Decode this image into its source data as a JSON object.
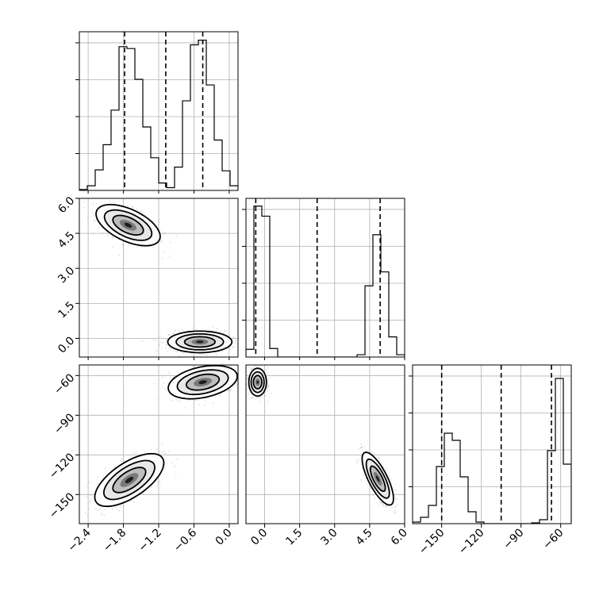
{
  "chart_data": {
    "type": "corner",
    "title": "",
    "grid": true,
    "variables": [
      {
        "ticks": [
          -2.4,
          -1.8,
          -1.2,
          -0.6,
          0.0
        ],
        "tick_labels": [
          "−2.4",
          "−1.8",
          "−1.2",
          "−0.6",
          "0.0"
        ],
        "range": [
          -2.55,
          0.15
        ]
      },
      {
        "ticks": [
          0.0,
          1.5,
          3.0,
          4.5,
          6.0
        ],
        "tick_labels": [
          "0.0",
          "1.5",
          "3.0",
          "4.5",
          "6.0"
        ],
        "range": [
          -0.8,
          6.0
        ]
      },
      {
        "ticks": [
          -150,
          -120,
          -90,
          -60
        ],
        "tick_labels": [
          "−150",
          "−120",
          "−90",
          "−60"
        ],
        "range": [
          -172,
          -52
        ]
      }
    ],
    "histograms": [
      {
        "variable": 0,
        "bin_edges": [
          -2.55,
          -2.415,
          -2.28,
          -2.145,
          -2.01,
          -1.875,
          -1.74,
          -1.605,
          -1.47,
          -1.335,
          -1.2,
          -1.065,
          -0.93,
          -0.795,
          -0.66,
          -0.525,
          -0.39,
          -0.255,
          -0.12,
          0.015,
          0.15
        ],
        "counts": [
          1,
          5,
          22,
          49,
          86,
          154,
          152,
          119,
          68,
          35,
          8,
          3,
          25,
          96,
          156,
          161,
          113,
          54,
          21,
          5
        ],
        "ymax": 170,
        "quantiles": [
          -1.78,
          -1.08,
          -0.45
        ]
      },
      {
        "variable": 1,
        "bin_edges": [
          -0.8,
          -0.46,
          -0.12,
          0.22,
          0.56,
          0.9,
          1.24,
          1.58,
          1.92,
          2.26,
          2.6,
          2.94,
          3.28,
          3.62,
          3.96,
          4.3,
          4.64,
          4.98,
          5.32,
          5.66,
          6.0
        ],
        "counts": [
          10,
          195,
          182,
          11,
          0,
          0,
          0,
          0,
          0,
          0,
          0,
          0,
          0,
          0,
          3,
          92,
          158,
          110,
          26,
          3
        ],
        "ymax": 205,
        "quantiles": [
          -0.38,
          2.25,
          4.95
        ]
      },
      {
        "variable": 2,
        "bin_edges": [
          -172,
          -166,
          -160,
          -154,
          -148,
          -142,
          -136,
          -130,
          -124,
          -118,
          -112,
          -106,
          -100,
          -94,
          -88,
          -82,
          -76,
          -70,
          -64,
          -58,
          -52
        ],
        "counts": [
          2,
          8,
          23,
          72,
          114,
          105,
          59,
          15,
          2,
          0,
          0,
          0,
          0,
          0,
          0,
          1,
          5,
          92,
          183,
          75
        ],
        "ymax": 200,
        "quantiles": [
          -150,
          -105,
          -67
        ]
      }
    ],
    "density_2d": [
      {
        "x_variable": 0,
        "y_variable": 1,
        "modes": [
          {
            "center": [
              -1.72,
              4.85
            ],
            "sigma": [
              0.26,
              0.42
            ],
            "rho": -0.55,
            "weight": 0.5
          },
          {
            "center": [
              -0.5,
              -0.15
            ],
            "sigma": [
              0.26,
              0.22
            ],
            "rho": 0.0,
            "weight": 0.5
          }
        ]
      },
      {
        "x_variable": 0,
        "y_variable": 2,
        "modes": [
          {
            "center": [
              -1.7,
              -139
            ],
            "sigma": [
              0.28,
              9.5
            ],
            "rho": 0.65,
            "weight": 0.5
          },
          {
            "center": [
              -0.45,
              -65
            ],
            "sigma": [
              0.28,
              6.0
            ],
            "rho": 0.35,
            "weight": 0.5
          }
        ]
      },
      {
        "x_variable": 1,
        "y_variable": 2,
        "modes": [
          {
            "center": [
              -0.3,
              -65
            ],
            "sigma": [
              0.18,
              5.0
            ],
            "rho": 0.0,
            "weight": 0.5
          },
          {
            "center": [
              4.85,
              -138
            ],
            "sigma": [
              0.32,
              9.5
            ],
            "rho": -0.75,
            "weight": 0.5
          }
        ]
      }
    ]
  }
}
